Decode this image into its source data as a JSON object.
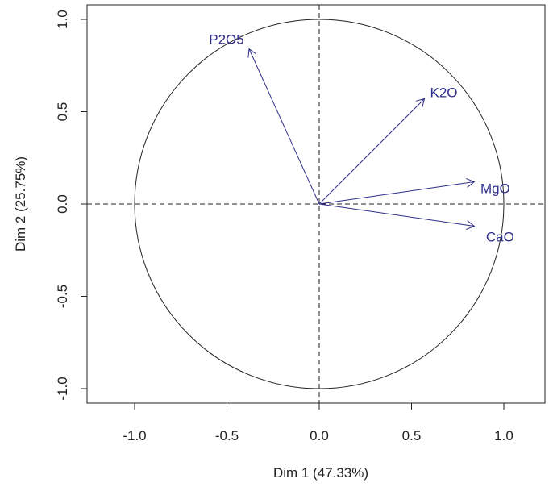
{
  "chart_data": {
    "type": "scatter",
    "title": "",
    "xlabel": "Dim 1 (47.33%)",
    "ylabel": "Dim 2 (25.75%)",
    "xlim": [
      -1.25,
      1.25
    ],
    "ylim": [
      -1.05,
      1.05
    ],
    "xticks": [
      "-1.0",
      "-0.5",
      "0.0",
      "0.5",
      "1.0"
    ],
    "yticks": [
      "-1.0",
      "-0.5",
      "0.0",
      "0.5",
      "1.0"
    ],
    "xtick_values": [
      -1.0,
      -0.5,
      0.0,
      0.5,
      1.0
    ],
    "ytick_values": [
      -1.0,
      -0.5,
      0.0,
      0.5,
      1.0
    ],
    "grid": false,
    "unit_circle": true,
    "arrow_color": "#2e2e8a",
    "variables": [
      {
        "name": "P2O5",
        "x": -0.38,
        "y": 0.84
      },
      {
        "name": "K2O",
        "x": 0.57,
        "y": 0.57
      },
      {
        "name": "MgO",
        "x": 0.84,
        "y": 0.12
      },
      {
        "name": "CaO",
        "x": 0.84,
        "y": -0.12
      }
    ]
  }
}
